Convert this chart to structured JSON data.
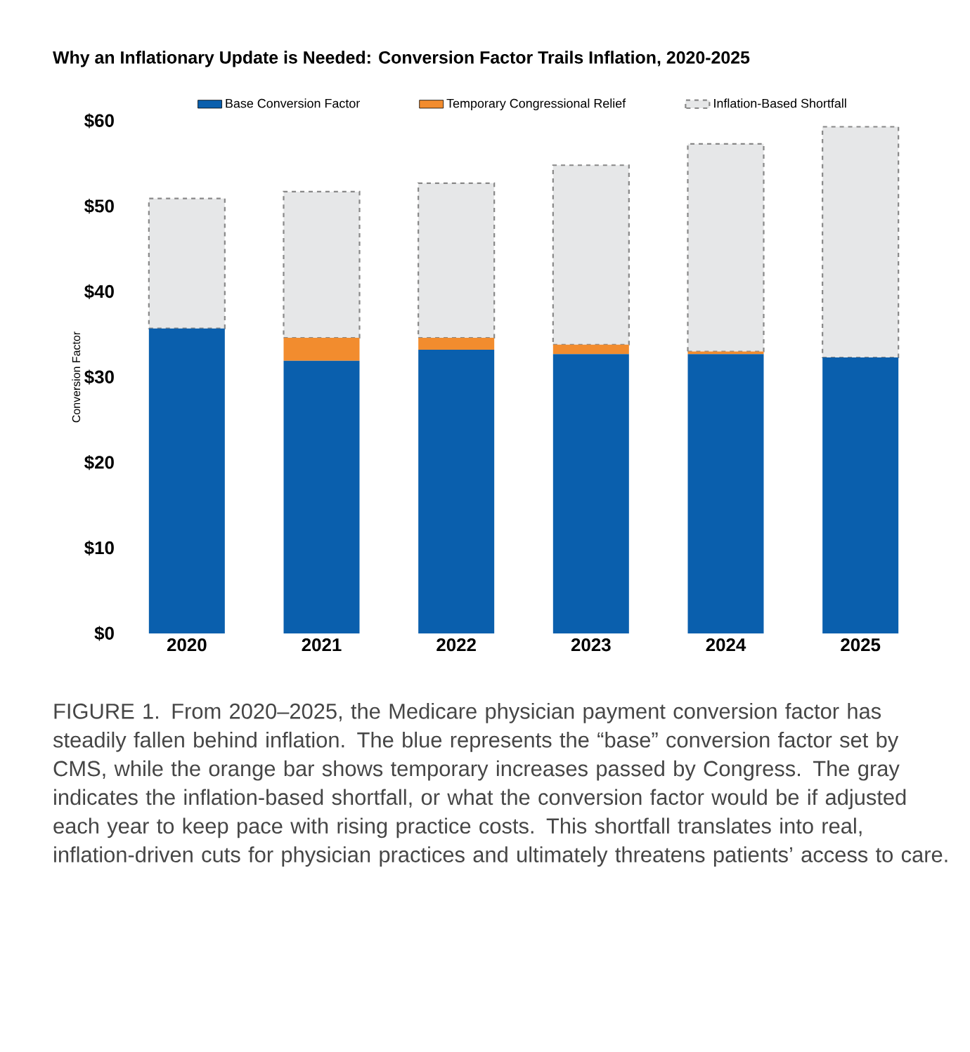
{
  "chart_data": {
    "type": "bar",
    "stacked": true,
    "title": "Why an Inflationary Update is Needed: Conversion Factor Trails Inflation, 2020-2025",
    "ylabel": "Conversion Factor",
    "categories": [
      "2020",
      "2021",
      "2022",
      "2023",
      "2024",
      "2025"
    ],
    "series": [
      {
        "name": "Base Conversion Factor",
        "color": "#0a5fad",
        "values": [
          35.7,
          31.9,
          33.2,
          32.7,
          32.7,
          32.3
        ]
      },
      {
        "name": "Temporary Congressional Relief",
        "color": "#f28c2e",
        "values": [
          0,
          2.7,
          1.4,
          1.1,
          0.3,
          0
        ]
      },
      {
        "name": "Inflation-Based Shortfall",
        "color": "#e6e7e8",
        "line_style": "dashed",
        "values": [
          15.2,
          17.1,
          18.1,
          21.0,
          24.3,
          27.0
        ]
      }
    ],
    "ylim": [
      0,
      60
    ],
    "yticks": [
      {
        "value": 0,
        "label": "$0"
      },
      {
        "value": 10,
        "label": "$10"
      },
      {
        "value": 20,
        "label": "$20"
      },
      {
        "value": 30,
        "label": "$30"
      },
      {
        "value": 40,
        "label": "$40"
      },
      {
        "value": 50,
        "label": "$50"
      },
      {
        "value": 60,
        "label": "$60"
      }
    ],
    "grid": false,
    "legend": "top",
    "annotations": [
      "FIGURE 1. From 2020–2025, the Medicare physician payment conversion factor has steadily fallen behind inflation. The blue represents the “base” conversion factor set by CMS, while the orange bar shows temporary increases passed by Congress. The gray indicates the inflation-based shortfall, or what the conversion factor would be if adjusted each year to keep pace with rising practice costs. This shortfall translates into real, inflation-driven cuts for physician practices and ultimately threatens patients’ access to care."
    ]
  }
}
